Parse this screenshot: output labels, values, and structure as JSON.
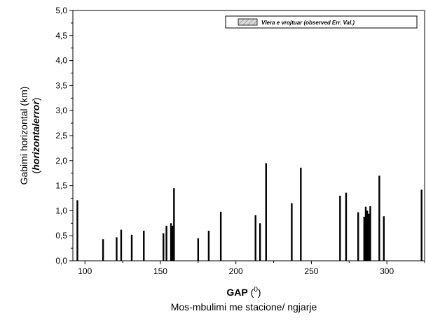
{
  "chart_data": {
    "type": "bar",
    "xlabel": "GAP",
    "xlabel_units_prefix": "(",
    "xlabel_units_superscript": "0",
    "xlabel_units_suffix": ")",
    "xlabel_line2": "Mos-mbulimi me stacione/ ngjarje",
    "ylabel_line1": "Gabimi horizontal (km)",
    "ylabel_line2_prefix": "(",
    "ylabel_line2_emph": "horizontalerror",
    "ylabel_line2_suffix": ")",
    "xlim": [
      92,
      325
    ],
    "ylim": [
      0,
      5
    ],
    "xticks": [
      100,
      150,
      200,
      250,
      300
    ],
    "yticks": [
      0,
      0.5,
      1.0,
      1.5,
      2.0,
      2.5,
      3.0,
      3.5,
      4.0,
      4.5,
      5.0
    ],
    "ytick_labels": [
      "0,0",
      "0,5",
      "1,0",
      "1,5",
      "2,0",
      "2,5",
      "3,0",
      "3,5",
      "4,0",
      "4,5",
      "5,0"
    ],
    "grid": false,
    "legend_position": "top-right",
    "series": [
      {
        "name": "Vlera e vrojtuar (observed Err. Val.)",
        "x": [
          95,
          112,
          121,
          124,
          131,
          139,
          152,
          154,
          157,
          158,
          159,
          175,
          182,
          190,
          213,
          216,
          220,
          237,
          243,
          269,
          273,
          281,
          285,
          286,
          287,
          288,
          289,
          295,
          298,
          323
        ],
        "values": [
          1.21,
          0.43,
          0.47,
          0.62,
          0.52,
          0.6,
          0.55,
          0.7,
          0.75,
          0.7,
          1.45,
          0.45,
          0.6,
          0.98,
          0.91,
          0.75,
          1.95,
          1.15,
          1.86,
          1.3,
          1.36,
          0.97,
          0.88,
          1.08,
          1.0,
          0.94,
          1.09,
          1.7,
          0.89,
          1.42
        ]
      }
    ]
  }
}
